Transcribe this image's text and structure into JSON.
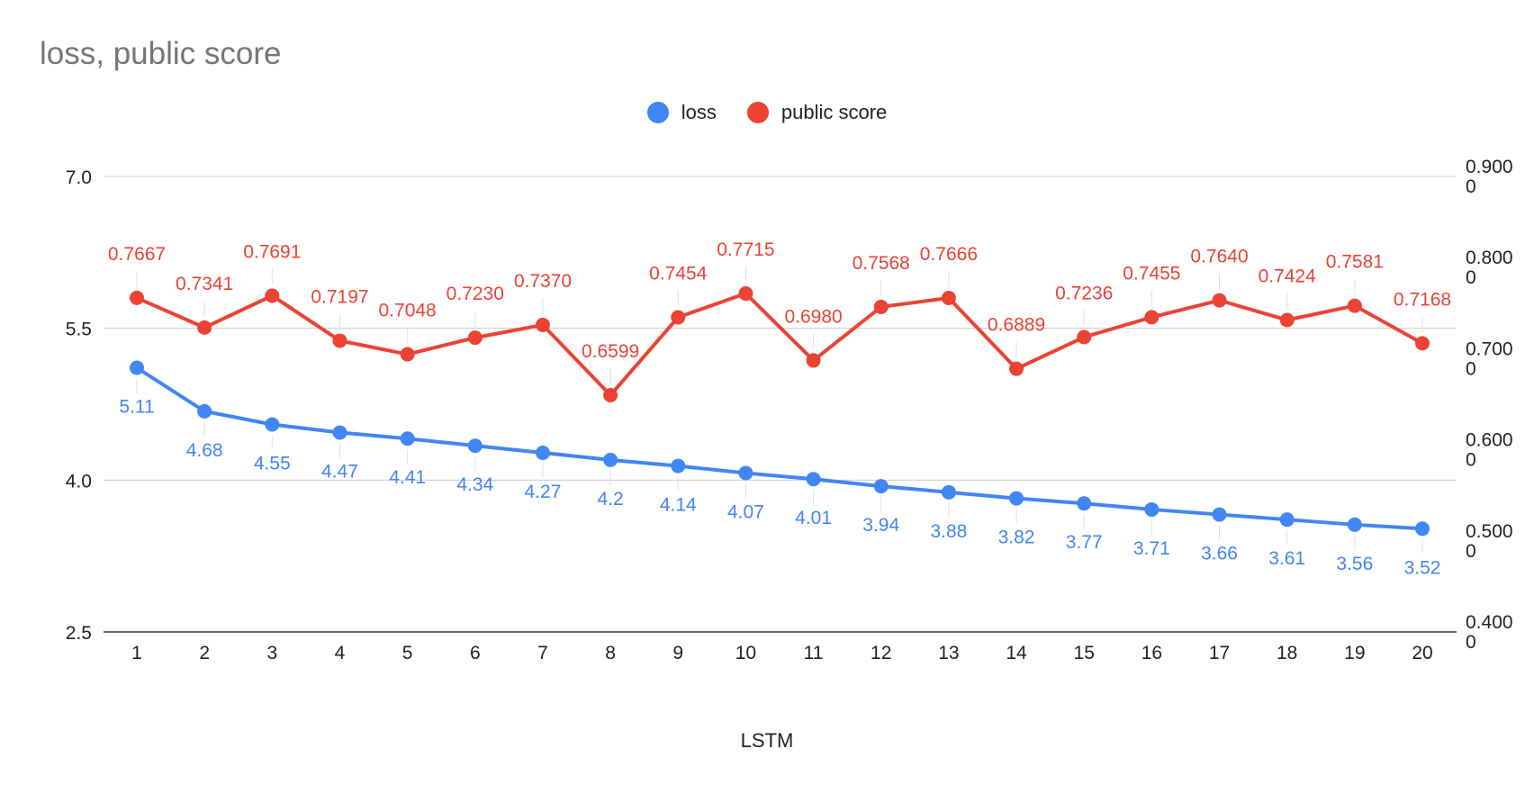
{
  "chart_data": {
    "type": "line",
    "title": "loss, public score",
    "xlabel": "LSTM",
    "categories": [
      "1",
      "2",
      "3",
      "4",
      "5",
      "6",
      "7",
      "8",
      "9",
      "10",
      "11",
      "12",
      "13",
      "14",
      "15",
      "16",
      "17",
      "18",
      "19",
      "20"
    ],
    "series": [
      {
        "name": "loss",
        "axis": "left",
        "color": "#4285f4",
        "values": [
          5.11,
          4.68,
          4.55,
          4.47,
          4.41,
          4.34,
          4.27,
          4.2,
          4.14,
          4.07,
          4.01,
          3.94,
          3.88,
          3.82,
          3.77,
          3.71,
          3.66,
          3.61,
          3.56,
          3.52
        ],
        "labels": [
          "5.11",
          "4.68",
          "4.55",
          "4.47",
          "4.41",
          "4.34",
          "4.27",
          "4.2",
          "4.14",
          "4.07",
          "4.01",
          "3.94",
          "3.88",
          "3.82",
          "3.77",
          "3.71",
          "3.66",
          "3.61",
          "3.56",
          "3.52"
        ]
      },
      {
        "name": "public score",
        "axis": "right",
        "color": "#ea4335",
        "values": [
          0.7667,
          0.7341,
          0.7691,
          0.7197,
          0.7048,
          0.723,
          0.737,
          0.6599,
          0.7454,
          0.7715,
          0.698,
          0.7568,
          0.7666,
          0.6889,
          0.7236,
          0.7455,
          0.764,
          0.7424,
          0.7581,
          0.7168
        ],
        "labels": [
          "0.7667",
          "0.7341",
          "0.7691",
          "0.7197",
          "0.7048",
          "0.7230",
          "0.7370",
          "0.6599",
          "0.7454",
          "0.7715",
          "0.6980",
          "0.7568",
          "0.7666",
          "0.6889",
          "0.7236",
          "0.7455",
          "0.7640",
          "0.7424",
          "0.7581",
          "0.7168"
        ]
      }
    ],
    "left_axis": {
      "min": 2.5,
      "max": 7.0,
      "ticks": [
        "7.0",
        "5.5",
        "4.0",
        "2.5"
      ],
      "tick_values": [
        7.0,
        5.5,
        4.0,
        2.5
      ]
    },
    "right_axis": {
      "min": 0.4,
      "max": 0.9,
      "tick_values": [
        0.9,
        0.8,
        0.7,
        0.6,
        0.5,
        0.4
      ],
      "ticks": [
        [
          "0.900",
          "0"
        ],
        [
          "0.800",
          "0"
        ],
        [
          "0.700",
          "0"
        ],
        [
          "0.600",
          "0"
        ],
        [
          "0.500",
          "0"
        ],
        [
          "0.400",
          "0"
        ]
      ]
    },
    "grid": true,
    "legend_position": "top"
  }
}
